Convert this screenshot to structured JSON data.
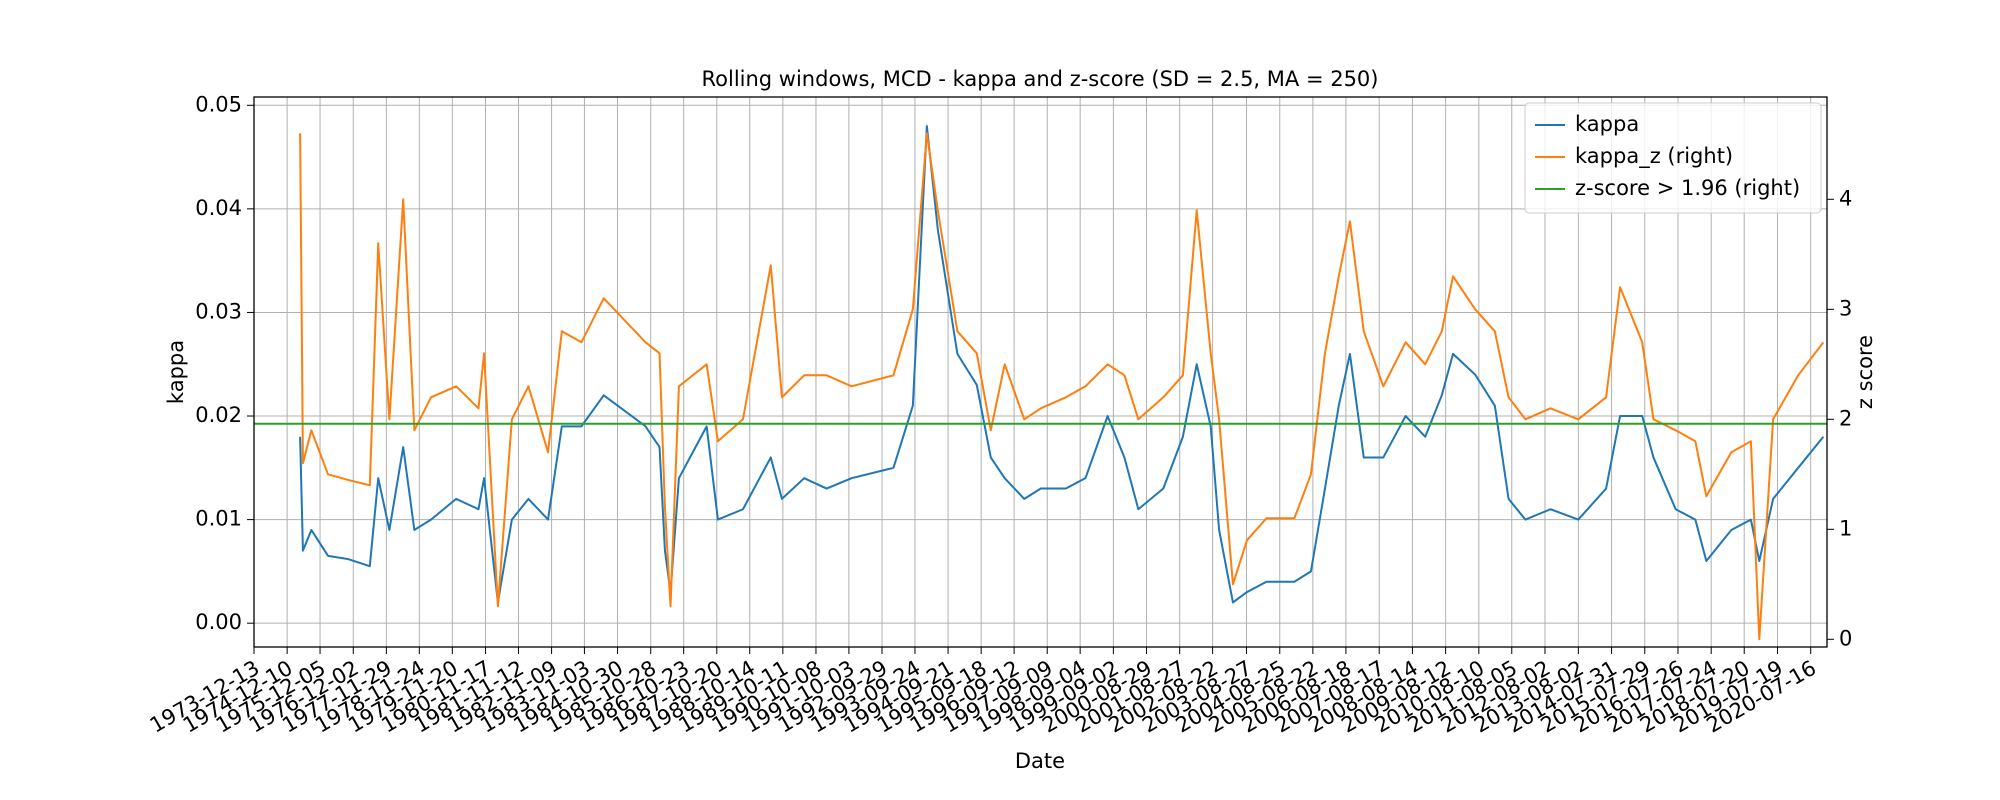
{
  "chart_data": {
    "type": "line",
    "title": "Rolling windows, MCD - kappa and z-score (SD = 2.5, MA = 250)",
    "xlabel": "Date",
    "ylabel": "kappa",
    "y2label": "z score",
    "grid": true,
    "legend": "upper right",
    "xlim": [
      "1973-12-13",
      "2021-01-10"
    ],
    "xticks": [
      "1973-12-13",
      "1974-12-10",
      "1975-12-05",
      "1976-12-02",
      "1977-11-29",
      "1978-11-24",
      "1979-11-20",
      "1980-11-17",
      "1981-11-12",
      "1982-11-09",
      "1983-11-03",
      "1984-10-30",
      "1985-10-28",
      "1986-10-23",
      "1987-10-20",
      "1988-10-14",
      "1989-10-11",
      "1990-10-08",
      "1991-10-03",
      "1992-09-29",
      "1993-09-24",
      "1994-09-21",
      "1995-09-18",
      "1996-09-12",
      "1997-09-09",
      "1998-09-04",
      "1999-09-02",
      "2000-08-29",
      "2001-08-27",
      "2002-08-22",
      "2003-08-27",
      "2004-08-25",
      "2005-08-22",
      "2006-08-18",
      "2007-08-17",
      "2008-08-14",
      "2009-08-12",
      "2010-08-10",
      "2011-08-05",
      "2012-08-02",
      "2013-08-02",
      "2014-07-31",
      "2015-07-29",
      "2016-07-26",
      "2017-07-24",
      "2018-07-20",
      "2019-07-19",
      "2020-07-16"
    ],
    "ylim": [
      -0.0023,
      0.0508
    ],
    "yticks": [
      {
        "value": 0,
        "label": "0.00"
      },
      {
        "value": 0.01,
        "label": "0.01"
      },
      {
        "value": 0.02,
        "label": "0.02"
      },
      {
        "value": 0.03,
        "label": "0.03"
      },
      {
        "value": 0.04,
        "label": "0.04"
      },
      {
        "value": 0.05,
        "label": "0.05"
      }
    ],
    "y2lim": [
      -0.07,
      4.93
    ],
    "y2ticks": [
      0,
      1,
      2,
      3,
      4
    ],
    "x": [
      "1975-05-01",
      "1975-06-01",
      "1975-09-01",
      "1976-03-01",
      "1976-10-01",
      "1977-06-01",
      "1977-09-01",
      "1978-01-01",
      "1978-06-01",
      "1978-10-01",
      "1979-04-01",
      "1980-01-01",
      "1980-09-01",
      "1980-11-01",
      "1981-04-01",
      "1981-09-01",
      "1982-03-01",
      "1982-10-01",
      "1983-03-01",
      "1983-10-01",
      "1984-06-01",
      "1985-09-01",
      "1986-02-01",
      "1986-04-01",
      "1986-06-01",
      "1986-09-01",
      "1987-07-01",
      "1987-11-01",
      "1988-08-01",
      "1989-06-01",
      "1989-10-01",
      "1990-06-01",
      "1991-02-01",
      "1991-11-01",
      "1993-02-01",
      "1993-09-01",
      "1994-02-01",
      "1994-06-01",
      "1995-01-01",
      "1995-08-01",
      "1996-01-01",
      "1996-06-01",
      "1997-01-01",
      "1997-07-01",
      "1998-04-01",
      "1998-11-01",
      "1999-07-01",
      "2000-01-01",
      "2000-06-01",
      "2001-03-01",
      "2001-10-01",
      "2002-03-01",
      "2002-08-01",
      "2002-11-01",
      "2003-04-01",
      "2003-09-01",
      "2004-04-01",
      "2005-02-01",
      "2005-08-01",
      "2006-01-01",
      "2006-06-01",
      "2006-10-01",
      "2007-03-01",
      "2007-10-01",
      "2008-06-01",
      "2009-01-01",
      "2009-07-01",
      "2009-11-01",
      "2010-07-01",
      "2011-02-01",
      "2011-07-01",
      "2012-01-01",
      "2012-10-01",
      "2013-08-01",
      "2014-06-01",
      "2014-11-01",
      "2015-07-01",
      "2015-11-01",
      "2016-07-01",
      "2017-02-01",
      "2017-06-01",
      "2018-03-01",
      "2018-10-01",
      "2019-01-01",
      "2019-06-01",
      "2020-03-01",
      "2020-12-01"
    ],
    "series": [
      {
        "name": "kappa",
        "color": "#1f77b4",
        "values": [
          0.018,
          0.007,
          0.009,
          0.0065,
          0.0062,
          0.0055,
          0.014,
          0.009,
          0.017,
          0.009,
          0.01,
          0.012,
          0.011,
          0.014,
          0.002,
          0.01,
          0.012,
          0.01,
          0.019,
          0.019,
          0.022,
          0.019,
          0.017,
          0.007,
          0.003,
          0.014,
          0.019,
          0.01,
          0.011,
          0.016,
          0.012,
          0.014,
          0.013,
          0.014,
          0.015,
          0.021,
          0.048,
          0.038,
          0.026,
          0.023,
          0.016,
          0.014,
          0.012,
          0.013,
          0.013,
          0.014,
          0.02,
          0.016,
          0.011,
          0.013,
          0.018,
          0.025,
          0.019,
          0.009,
          0.002,
          0.003,
          0.004,
          0.004,
          0.005,
          0.013,
          0.021,
          0.026,
          0.016,
          0.016,
          0.02,
          0.018,
          0.022,
          0.026,
          0.024,
          0.021,
          0.012,
          0.01,
          0.011,
          0.01,
          0.013,
          0.02,
          0.02,
          0.016,
          0.011,
          0.01,
          0.006,
          0.009,
          0.01,
          0.006,
          0.012,
          0.015,
          0.018
        ]
      },
      {
        "name": "kappa_z (right)",
        "color": "#ff7f0e",
        "axis": "y2",
        "values": [
          4.6,
          1.6,
          1.9,
          1.5,
          1.45,
          1.4,
          3.6,
          2.0,
          4.0,
          1.9,
          2.2,
          2.3,
          2.1,
          2.6,
          0.3,
          2.0,
          2.3,
          1.7,
          2.8,
          2.7,
          3.1,
          2.7,
          2.6,
          1.2,
          0.3,
          2.3,
          2.5,
          1.8,
          2.0,
          3.4,
          2.2,
          2.4,
          2.4,
          2.3,
          2.4,
          3.0,
          4.6,
          3.9,
          2.8,
          2.6,
          1.9,
          2.5,
          2.0,
          2.1,
          2.2,
          2.3,
          2.5,
          2.4,
          2.0,
          2.2,
          2.4,
          3.9,
          2.6,
          2.0,
          0.5,
          0.9,
          1.1,
          1.1,
          1.5,
          2.6,
          3.3,
          3.8,
          2.8,
          2.3,
          2.7,
          2.5,
          2.8,
          3.3,
          3.0,
          2.8,
          2.2,
          2.0,
          2.1,
          2.0,
          2.2,
          3.2,
          2.7,
          2.0,
          1.9,
          1.8,
          1.3,
          1.7,
          1.8,
          0.0,
          2.0,
          2.4,
          2.7
        ]
      },
      {
        "name": "z-score > 1.96 (right)",
        "color": "#2ca02c",
        "axis": "y2",
        "hline": 1.96
      }
    ]
  }
}
